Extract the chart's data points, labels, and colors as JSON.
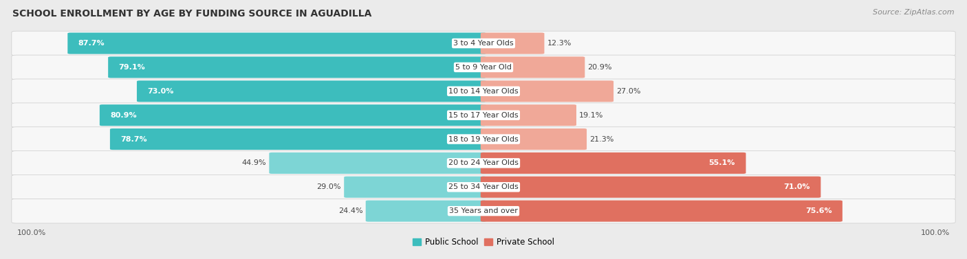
{
  "title": "SCHOOL ENROLLMENT BY AGE BY FUNDING SOURCE IN AGUADILLA",
  "source": "Source: ZipAtlas.com",
  "categories": [
    "3 to 4 Year Olds",
    "5 to 9 Year Old",
    "10 to 14 Year Olds",
    "15 to 17 Year Olds",
    "18 to 19 Year Olds",
    "20 to 24 Year Olds",
    "25 to 34 Year Olds",
    "35 Years and over"
  ],
  "public_pct": [
    87.7,
    79.1,
    73.0,
    80.9,
    78.7,
    44.9,
    29.0,
    24.4
  ],
  "private_pct": [
    12.3,
    20.9,
    27.0,
    19.1,
    21.3,
    55.1,
    71.0,
    75.6
  ],
  "public_color_hi": "#3DBDBD",
  "public_color_lo": "#7DD5D5",
  "private_color_hi": "#E07060",
  "private_color_lo": "#F0A898",
  "bg_color": "#ebebeb",
  "row_bg": "#f7f7f7",
  "title_fontsize": 10,
  "bar_label_fontsize": 8,
  "cat_label_fontsize": 8,
  "legend_fontsize": 8.5,
  "source_fontsize": 8,
  "axis_label_fontsize": 8
}
